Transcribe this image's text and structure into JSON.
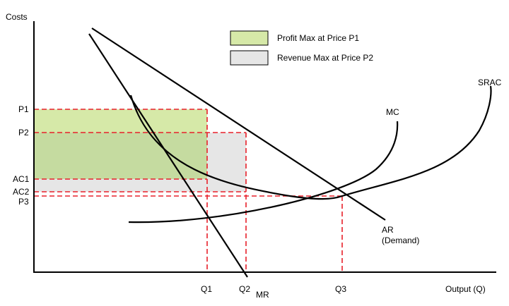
{
  "axes": {
    "y_label": "Costs",
    "x_label": "Output (Q)"
  },
  "price_labels": {
    "p1": "P1",
    "p2": "P2",
    "ac1": "AC1",
    "ac2": "AC2",
    "p3": "P3"
  },
  "quantity_labels": {
    "q1": "Q1",
    "q2": "Q2",
    "q3": "Q3"
  },
  "curve_labels": {
    "mr": "MR",
    "mc": "MC",
    "srac": "SRAC",
    "ar": "AR",
    "ar_note": "(Demand)"
  },
  "legend": {
    "items": [
      {
        "label": "Profit Max at Price P1",
        "color": "#d6e9a8"
      },
      {
        "label": "Revenue Max at Price P2",
        "color": "#e6e6e6"
      }
    ]
  },
  "colors": {
    "guide_lines": "#e8202a",
    "profit_area": "#d6e9a8",
    "profit_overlap": "#c5dba0",
    "revenue_area": "#e6e6e6"
  }
}
